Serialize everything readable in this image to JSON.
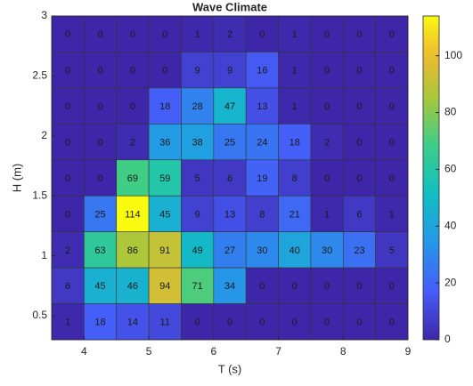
{
  "chart_data": {
    "type": "heatmap",
    "title": "Wave Climate",
    "x_label": "T (s)",
    "y_label": "H (m)",
    "x": [
      3.75,
      4.25,
      4.75,
      5.25,
      5.75,
      6.25,
      6.75,
      7.25,
      7.75,
      8.25,
      8.75
    ],
    "y": [
      2.85,
      2.55,
      2.25,
      1.95,
      1.65,
      1.35,
      1.05,
      0.75,
      0.45
    ],
    "values": [
      [
        0,
        0,
        0,
        0,
        1,
        2,
        0,
        1,
        0,
        0,
        0
      ],
      [
        0,
        0,
        0,
        0,
        9,
        9,
        16,
        1,
        0,
        0,
        0
      ],
      [
        0,
        0,
        0,
        18,
        28,
        47,
        13,
        1,
        0,
        0,
        0
      ],
      [
        0,
        0,
        2,
        36,
        38,
        25,
        24,
        18,
        2,
        0,
        0
      ],
      [
        0,
        0,
        69,
        59,
        5,
        6,
        19,
        8,
        0,
        0,
        0
      ],
      [
        0,
        25,
        114,
        45,
        9,
        13,
        8,
        21,
        1,
        6,
        1
      ],
      [
        2,
        63,
        86,
        91,
        49,
        27,
        30,
        40,
        30,
        23,
        5
      ],
      [
        6,
        45,
        46,
        94,
        71,
        34,
        0,
        0,
        0,
        0,
        0
      ],
      [
        1,
        18,
        14,
        11,
        0,
        0,
        0,
        0,
        0,
        0,
        0
      ]
    ],
    "xlim": [
      3.5,
      9
    ],
    "xticks": [
      4,
      5,
      6,
      7,
      8,
      9
    ],
    "ylim": [
      0.3,
      3
    ],
    "yticks": [
      0.5,
      1,
      1.5,
      2,
      2.5,
      3
    ],
    "clim": [
      0,
      114
    ],
    "cticks": [
      0,
      20,
      40,
      60,
      80,
      100
    ],
    "colormap": "parula"
  }
}
